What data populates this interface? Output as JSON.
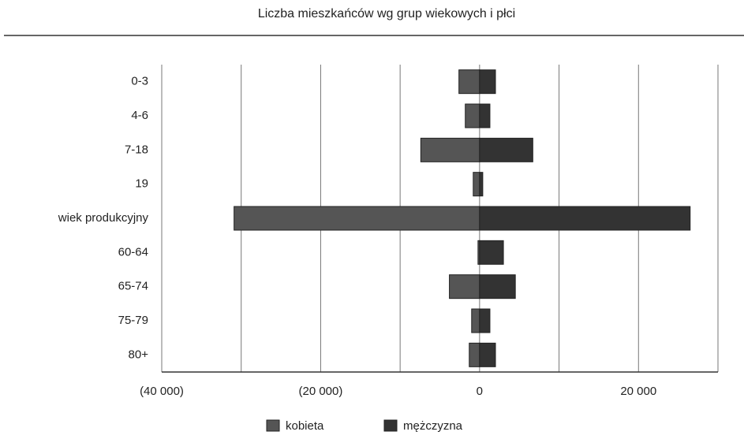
{
  "chart_data": {
    "type": "bar",
    "orientation": "horizontal",
    "title": "Liczba mieszkańców wg grup wiekowych i płci",
    "categories": [
      "0-3",
      "4-6",
      "7-18",
      "19",
      "wiek produkcyjny",
      "60-64",
      "65-74",
      "75-79",
      "80+"
    ],
    "series": [
      {
        "name": "kobieta",
        "color": "#555555",
        "values": [
          -2600,
          -1800,
          -7400,
          -800,
          -30900,
          -200,
          -3800,
          -1000,
          -1300
        ]
      },
      {
        "name": "mężczyzna",
        "color": "#333333",
        "values": [
          2000,
          1300,
          6700,
          400,
          26500,
          3000,
          4500,
          1300,
          2000
        ]
      }
    ],
    "xlim": [
      -40000,
      30000
    ],
    "xticks": [
      {
        "value": -40000,
        "label": "(40 000)"
      },
      {
        "value": -20000,
        "label": "(20 000)"
      },
      0,
      {
        "value": 20000,
        "label": "20 000"
      }
    ],
    "minor_xticks": [
      -30000,
      -10000,
      10000,
      30000
    ],
    "grid": true,
    "legend": "bottom"
  }
}
